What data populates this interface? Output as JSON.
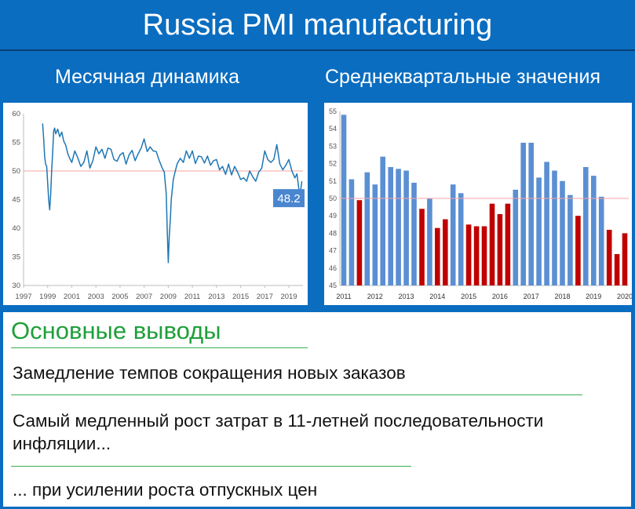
{
  "header": {
    "title": "Russia PMI manufacturing"
  },
  "panels": {
    "left_title": "Месячная динамика",
    "right_title": "Среднеквартальные значения"
  },
  "chart_data": [
    {
      "type": "line",
      "title": "Месячная динамика",
      "xlabel": "",
      "ylabel": "",
      "xlim": [
        1997,
        2020.17
      ],
      "ylim": [
        30,
        60
      ],
      "y_ticks": [
        30,
        35,
        40,
        45,
        50,
        55,
        60
      ],
      "x_ticks": [
        1997,
        1999,
        2001,
        2003,
        2005,
        2007,
        2009,
        2011,
        2013,
        2015,
        2017,
        2019
      ],
      "reference_line": 50,
      "colors": {
        "line": "#1f77b4",
        "reference": "#f4a6a6",
        "label_bg": "#4a86d0"
      },
      "last_value_label": "48.2",
      "series": [
        {
          "x": [
            1998.58,
            1998.67,
            1998.75,
            1998.83,
            1998.92,
            1999.0,
            1999.08,
            1999.17,
            1999.25,
            1999.33,
            1999.42,
            1999.5,
            1999.58,
            1999.67,
            1999.83,
            2000.0,
            2000.17,
            2000.33,
            2000.5,
            2000.67,
            2000.83,
            2001.0,
            2001.25,
            2001.5,
            2001.75,
            2002.0,
            2002.25,
            2002.5,
            2002.75,
            2003.0,
            2003.25,
            2003.5,
            2003.75,
            2004.0,
            2004.25,
            2004.5,
            2004.75,
            2005.0,
            2005.25,
            2005.5,
            2005.75,
            2006.0,
            2006.25,
            2006.5,
            2006.75,
            2007.0,
            2007.25,
            2007.5,
            2007.75,
            2008.0,
            2008.25,
            2008.5,
            2008.67,
            2008.83,
            2008.92,
            2009.0,
            2009.08,
            2009.17,
            2009.25,
            2009.42,
            2009.58,
            2009.75,
            2010.0,
            2010.25,
            2010.5,
            2010.75,
            2011.0,
            2011.25,
            2011.5,
            2011.75,
            2012.0,
            2012.25,
            2012.5,
            2012.75,
            2013.0,
            2013.25,
            2013.5,
            2013.75,
            2014.0,
            2014.25,
            2014.5,
            2014.75,
            2015.0,
            2015.25,
            2015.5,
            2015.75,
            2016.0,
            2016.25,
            2016.5,
            2016.75,
            2017.0,
            2017.25,
            2017.5,
            2017.75,
            2018.0,
            2018.25,
            2018.5,
            2018.75,
            2019.0,
            2019.25,
            2019.5,
            2019.67,
            2019.83,
            2019.92,
            2020.0,
            2020.08
          ],
          "y": [
            58.3,
            55.5,
            52.5,
            51.2,
            50.8,
            48.0,
            45.0,
            43.2,
            46.0,
            50.0,
            53.5,
            57.0,
            57.5,
            56.5,
            57.3,
            56.0,
            56.8,
            55.2,
            54.5,
            53.0,
            52.2,
            51.5,
            53.5,
            52.3,
            50.8,
            51.5,
            53.5,
            50.5,
            51.8,
            54.2,
            53.0,
            53.8,
            52.2,
            54.0,
            53.8,
            52.0,
            51.7,
            52.8,
            53.2,
            51.2,
            52.8,
            53.6,
            51.8,
            53.0,
            54.0,
            55.6,
            53.4,
            54.2,
            53.5,
            53.4,
            51.8,
            50.5,
            49.8,
            46.0,
            39.5,
            34.0,
            38.5,
            41.5,
            45.0,
            48.5,
            50.0,
            51.3,
            52.2,
            51.5,
            53.5,
            52.2,
            53.5,
            51.3,
            52.6,
            52.5,
            51.4,
            52.6,
            51.0,
            51.8,
            52.0,
            50.2,
            50.8,
            49.4,
            51.2,
            49.3,
            50.8,
            49.8,
            48.5,
            48.8,
            48.2,
            50.0,
            49.0,
            48.2,
            49.8,
            50.5,
            53.5,
            52.0,
            51.5,
            52.0,
            54.6,
            51.2,
            50.2,
            51.0,
            52.0,
            50.0,
            48.8,
            49.5,
            46.8,
            45.6,
            47.0,
            48.2
          ]
        }
      ]
    },
    {
      "type": "bar",
      "title": "Среднеквартальные значения",
      "xlabel": "",
      "ylabel": "",
      "ylim": [
        45,
        55
      ],
      "y_ticks": [
        45,
        46,
        47,
        48,
        49,
        50,
        51,
        52,
        53,
        54,
        55
      ],
      "x_labels": [
        "2011",
        "2012",
        "2013",
        "2014",
        "2015",
        "2016",
        "2017",
        "2018",
        "2019",
        "2020"
      ],
      "reference_line": 50,
      "colors": {
        "above_50": "#5b8fd3",
        "below_50": "#c00000",
        "reference": "#f4a6a6"
      },
      "categories": [
        "2011 Q1",
        "2011 Q2",
        "2011 Q3",
        "2011 Q4",
        "2012 Q1",
        "2012 Q2",
        "2012 Q3",
        "2012 Q4",
        "2013 Q1",
        "2013 Q2",
        "2013 Q3",
        "2013 Q4",
        "2014 Q1",
        "2014 Q2",
        "2014 Q3",
        "2014 Q4",
        "2015 Q1",
        "2015 Q2",
        "2015 Q3",
        "2015 Q4",
        "2016 Q1",
        "2016 Q2",
        "2016 Q3",
        "2016 Q4",
        "2017 Q1",
        "2017 Q2",
        "2017 Q3",
        "2017 Q4",
        "2018 Q1",
        "2018 Q2",
        "2018 Q3",
        "2018 Q4",
        "2019 Q1",
        "2019 Q2",
        "2019 Q3",
        "2019 Q4",
        "2020 Q1"
      ],
      "values": [
        54.8,
        51.1,
        49.9,
        51.5,
        50.8,
        52.4,
        51.8,
        51.7,
        51.6,
        50.9,
        49.4,
        50.0,
        48.3,
        48.8,
        50.8,
        50.3,
        48.5,
        48.4,
        48.4,
        49.7,
        49.1,
        49.7,
        50.5,
        53.2,
        53.2,
        51.2,
        52.1,
        51.6,
        51.0,
        50.2,
        49.0,
        51.8,
        51.3,
        50.1,
        48.2,
        46.8,
        48.0
      ]
    }
  ],
  "conclusions": {
    "title": "Основные выводы",
    "items": [
      "Замедление темпов сокращения новых заказов",
      "Самый медленный рост затрат в 11-летней последовательности инфляции...",
      "... при усилении роста отпускных цен"
    ]
  }
}
